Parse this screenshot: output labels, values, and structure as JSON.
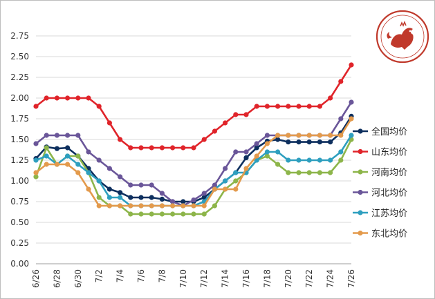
{
  "chart_data": {
    "type": "line",
    "x": [
      "6/26",
      "6/27",
      "6/28",
      "6/29",
      "6/30",
      "7/1",
      "7/2",
      "7/3",
      "7/4",
      "7/5",
      "7/6",
      "7/7",
      "7/8",
      "7/9",
      "7/10",
      "7/11",
      "7/12",
      "7/13",
      "7/14",
      "7/15",
      "7/16",
      "7/17",
      "7/18",
      "7/19",
      "7/20",
      "7/21",
      "7/22",
      "7/23",
      "7/24",
      "7/25",
      "7/26"
    ],
    "xticks": [
      "6/26",
      "6/28",
      "6/30",
      "7/2",
      "7/4",
      "7/6",
      "7/8",
      "7/10",
      "7/12",
      "7/14",
      "7/16",
      "7/18",
      "7/20",
      "7/22",
      "7/24",
      "7/26"
    ],
    "ylim": [
      0,
      2.75
    ],
    "yticks": [
      "0.00",
      "0.25",
      "0.50",
      "0.75",
      "1.00",
      "1.25",
      "1.50",
      "1.75",
      "2.00",
      "2.25",
      "2.50",
      "2.75"
    ],
    "grid": "horizontal",
    "legend_position": "right",
    "series": [
      {
        "name": "全国均价",
        "color": "#0d2f5e",
        "values": [
          1.27,
          1.41,
          1.39,
          1.4,
          1.3,
          1.15,
          1.0,
          0.9,
          0.86,
          0.8,
          0.8,
          0.8,
          0.78,
          0.75,
          0.75,
          0.75,
          0.8,
          0.9,
          1.0,
          1.1,
          1.28,
          1.4,
          1.48,
          1.5,
          1.47,
          1.47,
          1.47,
          1.47,
          1.47,
          1.58,
          1.78
        ]
      },
      {
        "name": "山东均价",
        "color": "#e0242a",
        "values": [
          1.9,
          2.0,
          2.0,
          2.0,
          2.0,
          2.0,
          1.9,
          1.7,
          1.5,
          1.4,
          1.4,
          1.4,
          1.4,
          1.4,
          1.4,
          1.4,
          1.5,
          1.6,
          1.7,
          1.8,
          1.8,
          1.9,
          1.9,
          1.9,
          1.9,
          1.9,
          1.9,
          1.9,
          2.0,
          2.2,
          2.4
        ]
      },
      {
        "name": "河南均价",
        "color": "#8db54a",
        "values": [
          1.05,
          1.4,
          1.2,
          1.3,
          1.3,
          1.1,
          0.8,
          0.7,
          0.7,
          0.6,
          0.6,
          0.6,
          0.6,
          0.6,
          0.6,
          0.6,
          0.6,
          0.7,
          0.9,
          1.0,
          1.1,
          1.25,
          1.3,
          1.2,
          1.1,
          1.1,
          1.1,
          1.1,
          1.1,
          1.25,
          1.5
        ]
      },
      {
        "name": "河北均价",
        "color": "#6a5699",
        "values": [
          1.45,
          1.55,
          1.55,
          1.55,
          1.55,
          1.35,
          1.25,
          1.15,
          1.05,
          0.95,
          0.95,
          0.95,
          0.85,
          0.75,
          0.7,
          0.77,
          0.85,
          0.95,
          1.15,
          1.35,
          1.35,
          1.45,
          1.55,
          1.55,
          1.55,
          1.55,
          1.55,
          1.55,
          1.55,
          1.75,
          1.95
        ]
      },
      {
        "name": "江苏均价",
        "color": "#2e9fbf",
        "values": [
          1.25,
          1.3,
          1.2,
          1.3,
          1.2,
          1.1,
          1.0,
          0.8,
          0.8,
          0.7,
          0.7,
          0.7,
          0.7,
          0.7,
          0.7,
          0.7,
          0.75,
          0.9,
          1.0,
          1.1,
          1.1,
          1.25,
          1.35,
          1.35,
          1.25,
          1.25,
          1.25,
          1.25,
          1.25,
          1.35,
          1.55
        ]
      },
      {
        "name": "东北均价",
        "color": "#e39a4c",
        "values": [
          1.1,
          1.2,
          1.2,
          1.2,
          1.1,
          0.9,
          0.7,
          0.7,
          0.7,
          0.7,
          0.7,
          0.7,
          0.7,
          0.7,
          0.7,
          0.7,
          0.7,
          0.9,
          0.9,
          0.9,
          1.15,
          1.3,
          1.45,
          1.55,
          1.55,
          1.55,
          1.55,
          1.55,
          1.55,
          1.55,
          1.75
        ]
      }
    ]
  }
}
